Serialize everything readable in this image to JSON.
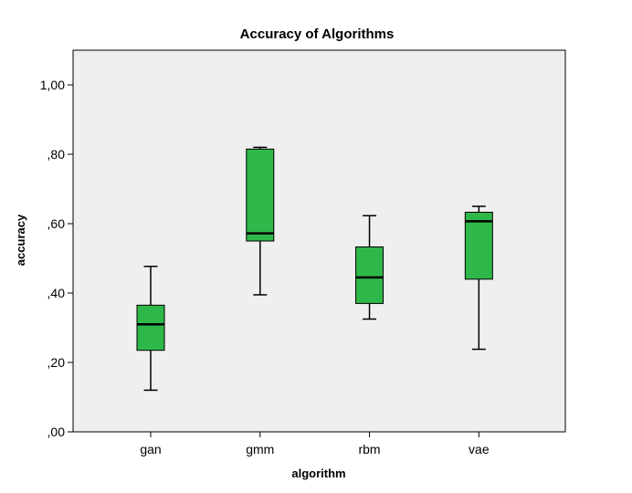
{
  "chart_data": {
    "type": "boxplot",
    "title": "Accuracy of Algorithms",
    "xlabel": "algorithm",
    "ylabel": "accuracy",
    "ylim": [
      0,
      1.1
    ],
    "yticks": [
      0,
      0.2,
      0.4,
      0.6,
      0.8,
      1.0
    ],
    "ytick_labels": [
      ",00",
      ",20",
      ",40",
      ",60",
      ",80",
      "1,00"
    ],
    "categories": [
      "gan",
      "gmm",
      "rbm",
      "vae"
    ],
    "boxes": [
      {
        "category": "gan",
        "min": 0.12,
        "q1": 0.235,
        "median": 0.31,
        "q3": 0.365,
        "max": 0.477
      },
      {
        "category": "gmm",
        "min": 0.395,
        "q1": 0.55,
        "median": 0.572,
        "q3": 0.815,
        "max": 0.82
      },
      {
        "category": "rbm",
        "min": 0.325,
        "q1": 0.37,
        "median": 0.445,
        "q3": 0.533,
        "max": 0.623
      },
      {
        "category": "vae",
        "min": 0.238,
        "q1": 0.44,
        "median": 0.607,
        "q3": 0.633,
        "max": 0.65
      }
    ],
    "box_color": "#2eb84a",
    "plot_background": "#efefef",
    "grid": false,
    "legend": "none"
  }
}
